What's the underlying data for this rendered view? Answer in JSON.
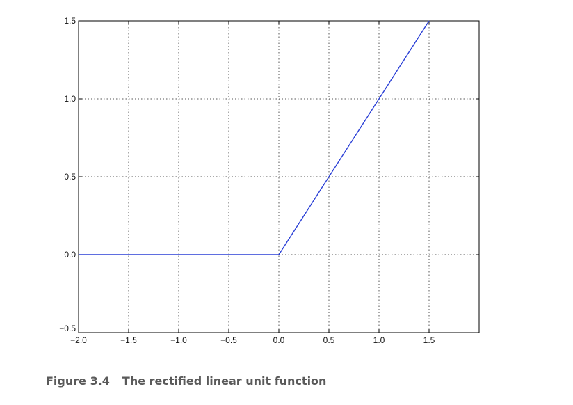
{
  "chart_data": {
    "type": "line",
    "title": "",
    "xlabel": "",
    "ylabel": "",
    "xlim": [
      -2.0,
      2.0
    ],
    "ylim": [
      -0.5,
      1.5
    ],
    "grid": true,
    "x_ticks": [
      "−2.0",
      "−1.5",
      "−1.0",
      "−0.5",
      "0.0",
      "0.5",
      "1.0",
      "1.5"
    ],
    "y_ticks": [
      "−0.5",
      "0.0",
      "0.5",
      "1.0",
      "1.5"
    ],
    "series": [
      {
        "color": "#2a3fd6",
        "x": [
          -2.0,
          0.0,
          1.5
        ],
        "y": [
          0.0,
          0.0,
          1.5
        ]
      }
    ]
  },
  "caption": {
    "figure_number": "Figure 3.4",
    "text": "The rectified linear unit function"
  }
}
